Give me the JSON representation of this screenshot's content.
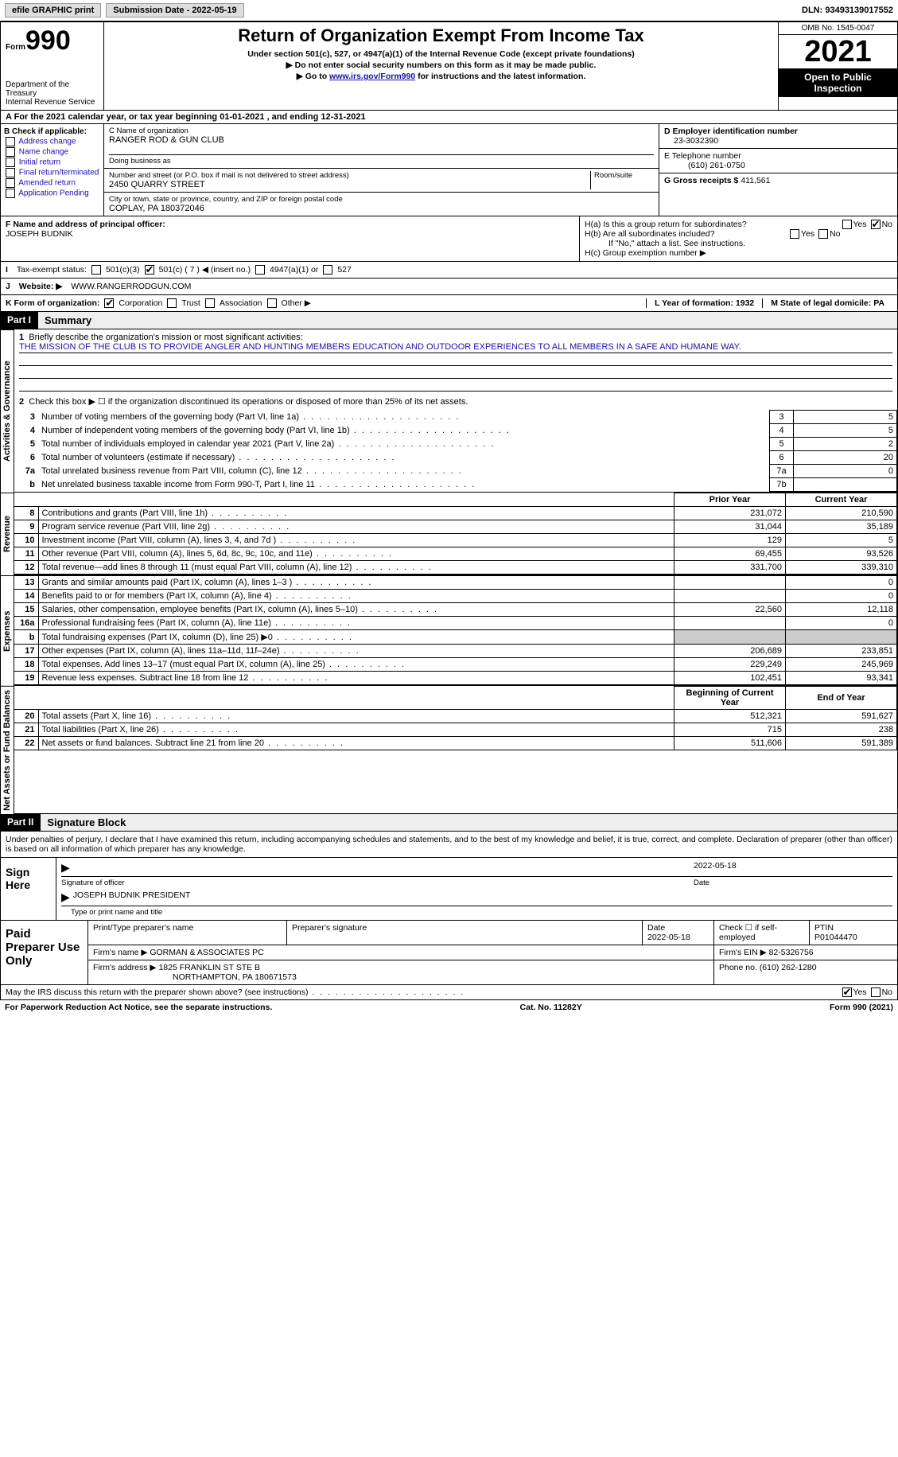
{
  "topbar": {
    "efile": "efile GRAPHIC print",
    "submission": "Submission Date - 2022-05-19",
    "dln_label": "DLN:",
    "dln": "93493139017552"
  },
  "header": {
    "form_prefix": "Form",
    "form_num": "990",
    "dept1": "Department of the Treasury",
    "dept2": "Internal Revenue Service",
    "title": "Return of Organization Exempt From Income Tax",
    "sub1": "Under section 501(c), 527, or 4947(a)(1) of the Internal Revenue Code (except private foundations)",
    "sub2": "▶ Do not enter social security numbers on this form as it may be made public.",
    "sub3_pre": "▶ Go to ",
    "sub3_link": "www.irs.gov/Form990",
    "sub3_post": " for instructions and the latest information.",
    "omb": "OMB No. 1545-0047",
    "year": "2021",
    "inspect": "Open to Public Inspection"
  },
  "row_a": "A For the 2021 calendar year, or tax year beginning 01-01-2021    , and ending 12-31-2021",
  "col_b": {
    "header": "B Check if applicable:",
    "items": [
      "Address change",
      "Name change",
      "Initial return",
      "Final return/terminated",
      "Amended return",
      "Application Pending"
    ]
  },
  "org": {
    "c_lbl": "C Name of organization",
    "name": "RANGER ROD & GUN CLUB",
    "dba_lbl": "Doing business as",
    "addr_lbl": "Number and street (or P.O. box if mail is not delivered to street address)",
    "room_lbl": "Room/suite",
    "street": "2450 QUARRY STREET",
    "city_lbl": "City or town, state or province, country, and ZIP or foreign postal code",
    "city": "COPLAY, PA  180372046"
  },
  "right": {
    "d_lbl": "D Employer identification number",
    "ein": "23-3032390",
    "e_lbl": "E Telephone number",
    "phone": "(610) 261-0750",
    "g_lbl": "G Gross receipts $",
    "gross": "411,561"
  },
  "officer": {
    "f_lbl": "F Name and address of principal officer:",
    "name": "JOSEPH BUDNIK",
    "ha": "H(a)  Is this a group return for subordinates?",
    "hb": "H(b)  Are all subordinates included?",
    "hb_note": "If \"No,\" attach a list. See instructions.",
    "hc": "H(c)  Group exemption number ▶",
    "yes": "Yes",
    "no": "No"
  },
  "exempt": {
    "i": "I",
    "lbl": "Tax-exempt status:",
    "c3": "501(c)(3)",
    "c": "501(c) ( 7 ) ◀ (insert no.)",
    "a1": "4947(a)(1) or",
    "s527": "527"
  },
  "website": {
    "j": "J",
    "lbl": "Website: ▶",
    "val": "WWW.RANGERRODGUN.COM"
  },
  "formorg": {
    "k": "K Form of organization:",
    "corp": "Corporation",
    "trust": "Trust",
    "assoc": "Association",
    "other": "Other ▶",
    "l": "L Year of formation: 1932",
    "m": "M State of legal domicile: PA"
  },
  "parts": {
    "p1": "Part I",
    "p1_title": "Summary",
    "p2": "Part II",
    "p2_title": "Signature Block"
  },
  "summary": {
    "q1": "Briefly describe the organization's mission or most significant activities:",
    "mission": "THE MISSION OF THE CLUB IS TO PROVIDE ANGLER AND HUNTING MEMBERS EDUCATION AND OUTDOOR EXPERIENCES TO ALL MEMBERS IN A SAFE AND HUMANE WAY.",
    "q2": "Check this box ▶ ☐ if the organization discontinued its operations or disposed of more than 25% of its net assets.",
    "lines": [
      {
        "n": "3",
        "t": "Number of voting members of the governing body (Part VI, line 1a)",
        "box": "3",
        "v": "5"
      },
      {
        "n": "4",
        "t": "Number of independent voting members of the governing body (Part VI, line 1b)",
        "box": "4",
        "v": "5"
      },
      {
        "n": "5",
        "t": "Total number of individuals employed in calendar year 2021 (Part V, line 2a)",
        "box": "5",
        "v": "2"
      },
      {
        "n": "6",
        "t": "Total number of volunteers (estimate if necessary)",
        "box": "6",
        "v": "20"
      },
      {
        "n": "7a",
        "t": "Total unrelated business revenue from Part VIII, column (C), line 12",
        "box": "7a",
        "v": "0"
      },
      {
        "n": "b",
        "t": "Net unrelated business taxable income from Form 990-T, Part I, line 11",
        "box": "7b",
        "v": ""
      }
    ],
    "side_ag": "Activities & Governance",
    "side_rev": "Revenue",
    "side_exp": "Expenses",
    "side_na": "Net Assets or Fund Balances",
    "prior": "Prior Year",
    "current": "Current Year",
    "rev": [
      {
        "n": "8",
        "t": "Contributions and grants (Part VIII, line 1h)",
        "p": "231,072",
        "c": "210,590"
      },
      {
        "n": "9",
        "t": "Program service revenue (Part VIII, line 2g)",
        "p": "31,044",
        "c": "35,189"
      },
      {
        "n": "10",
        "t": "Investment income (Part VIII, column (A), lines 3, 4, and 7d )",
        "p": "129",
        "c": "5"
      },
      {
        "n": "11",
        "t": "Other revenue (Part VIII, column (A), lines 5, 6d, 8c, 9c, 10c, and 11e)",
        "p": "69,455",
        "c": "93,526"
      },
      {
        "n": "12",
        "t": "Total revenue—add lines 8 through 11 (must equal Part VIII, column (A), line 12)",
        "p": "331,700",
        "c": "339,310"
      }
    ],
    "exp": [
      {
        "n": "13",
        "t": "Grants and similar amounts paid (Part IX, column (A), lines 1–3 )",
        "p": "",
        "c": "0"
      },
      {
        "n": "14",
        "t": "Benefits paid to or for members (Part IX, column (A), line 4)",
        "p": "",
        "c": "0"
      },
      {
        "n": "15",
        "t": "Salaries, other compensation, employee benefits (Part IX, column (A), lines 5–10)",
        "p": "22,560",
        "c": "12,118"
      },
      {
        "n": "16a",
        "t": "Professional fundraising fees (Part IX, column (A), line 11e)",
        "p": "",
        "c": "0"
      },
      {
        "n": "b",
        "t": "Total fundraising expenses (Part IX, column (D), line 25) ▶0",
        "p": "SHADE",
        "c": "SHADE"
      },
      {
        "n": "17",
        "t": "Other expenses (Part IX, column (A), lines 11a–11d, 11f–24e)",
        "p": "206,689",
        "c": "233,851"
      },
      {
        "n": "18",
        "t": "Total expenses. Add lines 13–17 (must equal Part IX, column (A), line 25)",
        "p": "229,249",
        "c": "245,969"
      },
      {
        "n": "19",
        "t": "Revenue less expenses. Subtract line 18 from line 12",
        "p": "102,451",
        "c": "93,341"
      }
    ],
    "begin": "Beginning of Current Year",
    "end": "End of Year",
    "na": [
      {
        "n": "20",
        "t": "Total assets (Part X, line 16)",
        "p": "512,321",
        "c": "591,627"
      },
      {
        "n": "21",
        "t": "Total liabilities (Part X, line 26)",
        "p": "715",
        "c": "238"
      },
      {
        "n": "22",
        "t": "Net assets or fund balances. Subtract line 21 from line 20",
        "p": "511,606",
        "c": "591,389"
      }
    ]
  },
  "sig": {
    "penalty": "Under penalties of perjury, I declare that I have examined this return, including accompanying schedules and statements, and to the best of my knowledge and belief, it is true, correct, and complete. Declaration of preparer (other than officer) is based on all information of which preparer has any knowledge.",
    "sign_here": "Sign Here",
    "sig_officer": "Signature of officer",
    "date": "Date",
    "sig_date": "2022-05-18",
    "name_title": "JOSEPH BUDNIK PRESIDENT",
    "type_name": "Type or print name and title"
  },
  "preparer": {
    "label": "Paid Preparer Use Only",
    "print_name": "Print/Type preparer's name",
    "prep_sig": "Preparer's signature",
    "date_lbl": "Date",
    "date": "2022-05-18",
    "check_lbl": "Check ☐ if self-employed",
    "ptin_lbl": "PTIN",
    "ptin": "P01044470",
    "firm_name_lbl": "Firm's name   ▶",
    "firm_name": "GORMAN & ASSOCIATES PC",
    "firm_ein_lbl": "Firm's EIN ▶",
    "firm_ein": "82-5326756",
    "firm_addr_lbl": "Firm's address ▶",
    "firm_addr1": "1825 FRANKLIN ST STE B",
    "firm_addr2": "NORTHAMPTON, PA  180671573",
    "phone_lbl": "Phone no.",
    "phone": "(610) 262-1280"
  },
  "footer": {
    "discuss": "May the IRS discuss this return with the preparer shown above? (see instructions)",
    "yes": "Yes",
    "no": "No",
    "paperwork": "For Paperwork Reduction Act Notice, see the separate instructions.",
    "cat": "Cat. No. 11282Y",
    "formref": "Form 990 (2021)"
  }
}
